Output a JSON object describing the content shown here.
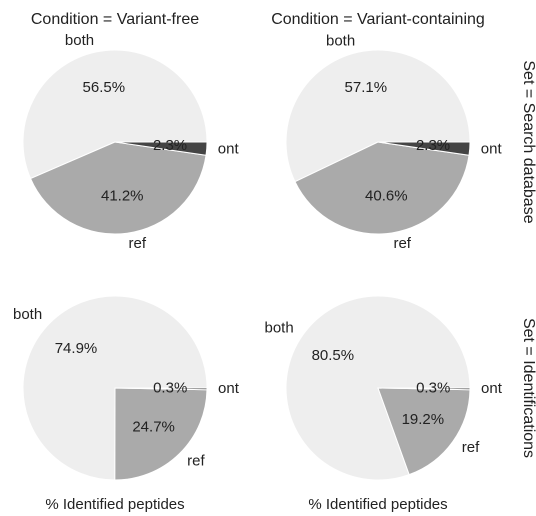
{
  "chart_data": [
    {
      "type": "pie",
      "title": "Condition = Variant-free",
      "categories": [
        "both",
        "ref",
        "ont"
      ],
      "values": [
        56.5,
        41.2,
        2.3
      ],
      "value_labels": [
        "56.5%",
        "41.2%",
        "2.3%"
      ],
      "colors": [
        "#eeeeee",
        "#aaaaaa",
        "#444444"
      ]
    },
    {
      "type": "pie",
      "title": "Condition = Variant-containing",
      "row_title": "Set = Search database",
      "categories": [
        "both",
        "ref",
        "ont"
      ],
      "values": [
        57.1,
        40.6,
        2.3
      ],
      "value_labels": [
        "57.1%",
        "40.6%",
        "2.3%"
      ],
      "colors": [
        "#eeeeee",
        "#aaaaaa",
        "#444444"
      ]
    },
    {
      "type": "pie",
      "xlabel": "% Identified peptides",
      "categories": [
        "both",
        "ref",
        "ont"
      ],
      "values": [
        74.9,
        24.7,
        0.3
      ],
      "value_labels": [
        "74.9%",
        "24.7%",
        "0.3%"
      ],
      "colors": [
        "#eeeeee",
        "#aaaaaa",
        "#444444"
      ]
    },
    {
      "type": "pie",
      "xlabel": "% Identified peptides",
      "row_title": "Set = Identifications",
      "categories": [
        "both",
        "ref",
        "ont"
      ],
      "values": [
        80.5,
        19.2,
        0.3
      ],
      "value_labels": [
        "80.5%",
        "19.2%",
        "0.3%"
      ],
      "colors": [
        "#eeeeee",
        "#aaaaaa",
        "#444444"
      ]
    }
  ]
}
